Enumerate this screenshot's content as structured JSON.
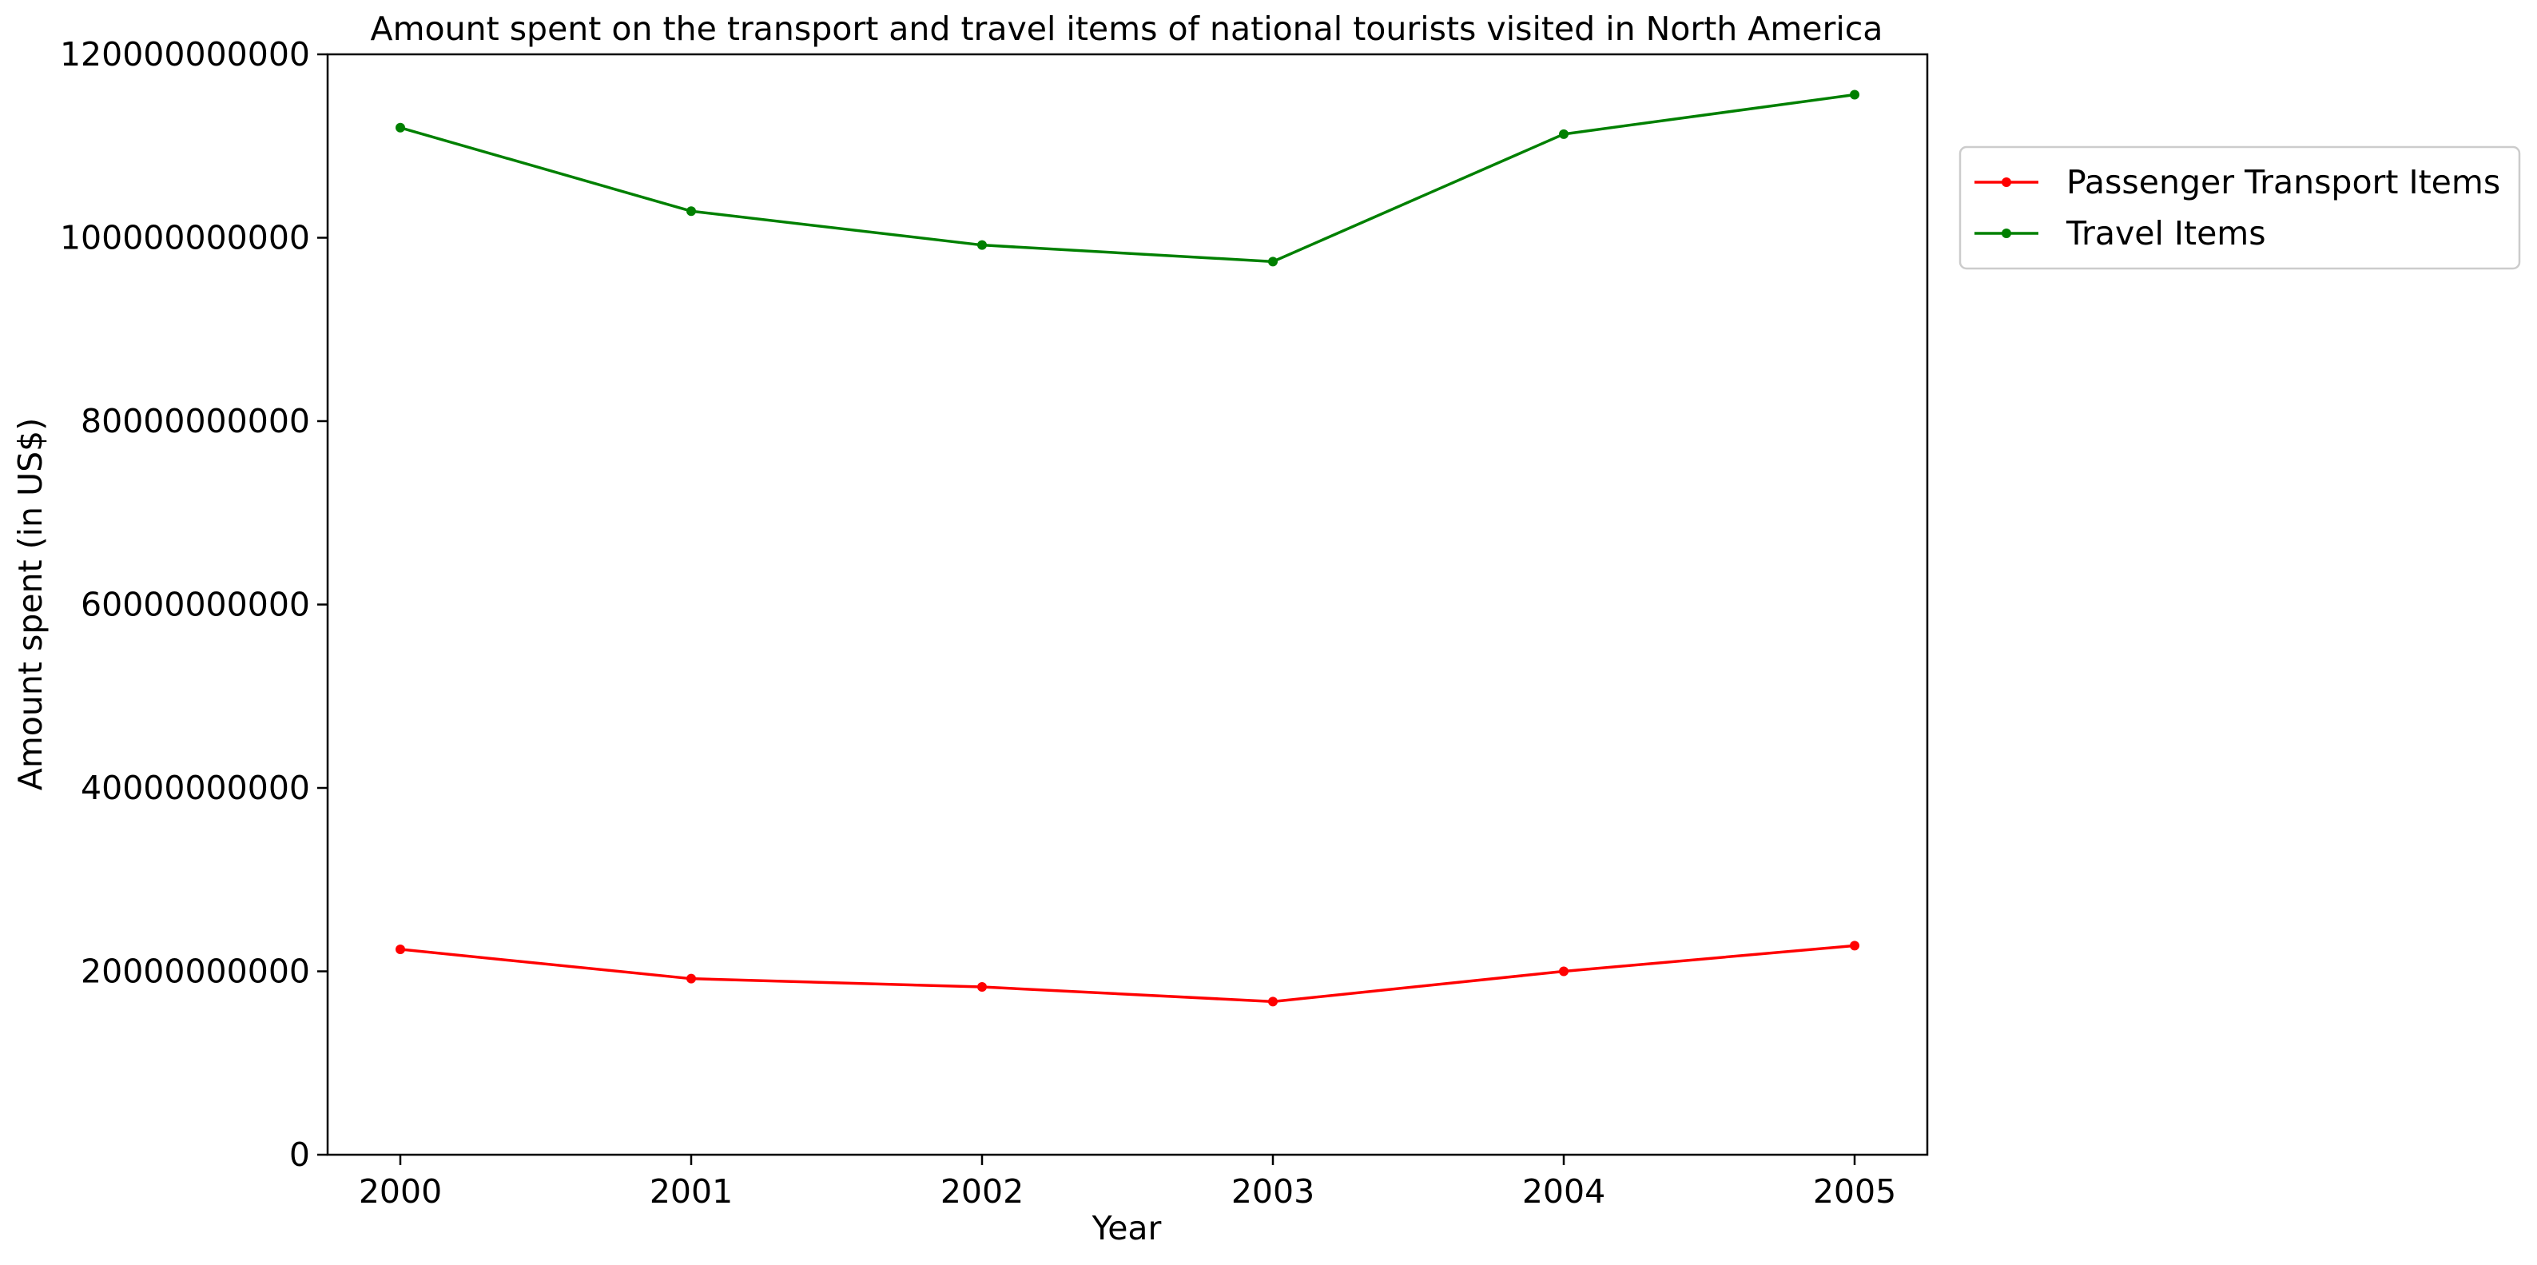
{
  "chart_data": {
    "type": "line",
    "title": "Amount spent on the transport and travel items of national tourists visited in North America",
    "xlabel": "Year",
    "ylabel": "Amount spent (in US$)",
    "x": [
      "2000",
      "2001",
      "2002",
      "2003",
      "2004",
      "2005"
    ],
    "ylim": [
      0,
      120000000000
    ],
    "yticks": [
      0,
      20000000000,
      40000000000,
      60000000000,
      80000000000,
      100000000000,
      120000000000
    ],
    "ytick_labels": [
      "0",
      "20000000000",
      "40000000000",
      "60000000000",
      "80000000000",
      "100000000000",
      "120000000000"
    ],
    "grid": false,
    "legend_position": "outside-top-right",
    "series": [
      {
        "name": "Passenger Transport Items",
        "color": "#ff0000",
        "values": [
          22400000000,
          19200000000,
          18300000000,
          16700000000,
          20000000000,
          22800000000
        ]
      },
      {
        "name": "Travel Items",
        "color": "#008000",
        "values": [
          112000000000,
          102900000000,
          99200000000,
          97400000000,
          111300000000,
          115600000000
        ]
      }
    ]
  }
}
